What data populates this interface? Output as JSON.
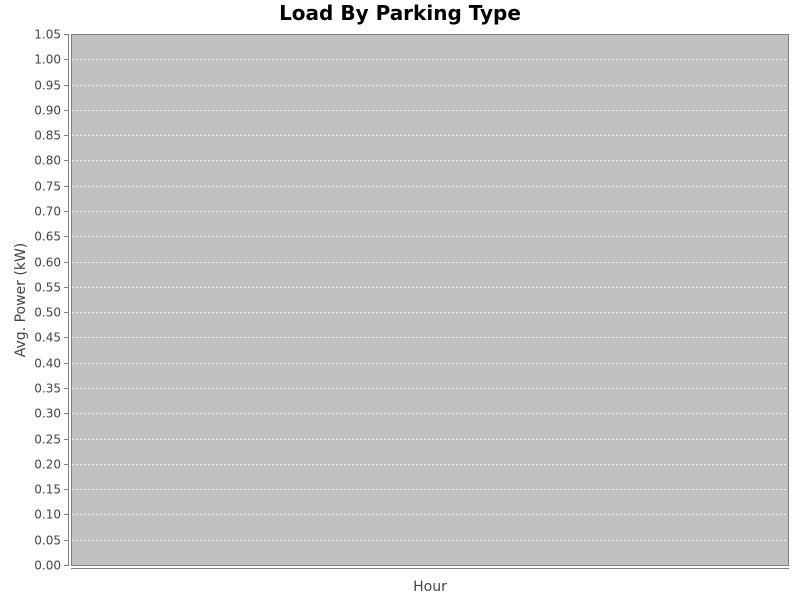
{
  "chart_data": {
    "type": "line",
    "title": "Load By Parking Type",
    "xlabel": "Hour",
    "ylabel": "Avg. Power (kW)",
    "ylim": [
      0,
      1.05
    ],
    "y_ticks": [
      "0.00",
      "0.05",
      "0.10",
      "0.15",
      "0.20",
      "0.25",
      "0.30",
      "0.35",
      "0.40",
      "0.45",
      "0.50",
      "0.55",
      "0.60",
      "0.65",
      "0.70",
      "0.75",
      "0.80",
      "0.85",
      "0.90",
      "0.95",
      "1.00",
      "1.05"
    ],
    "x_ticks": [],
    "series": [],
    "grid": true,
    "legend": "none",
    "colors": {
      "plot_background": "#c0c0c0",
      "gridline": "#ffffff",
      "axis": "#808080",
      "text": "#444444"
    }
  }
}
